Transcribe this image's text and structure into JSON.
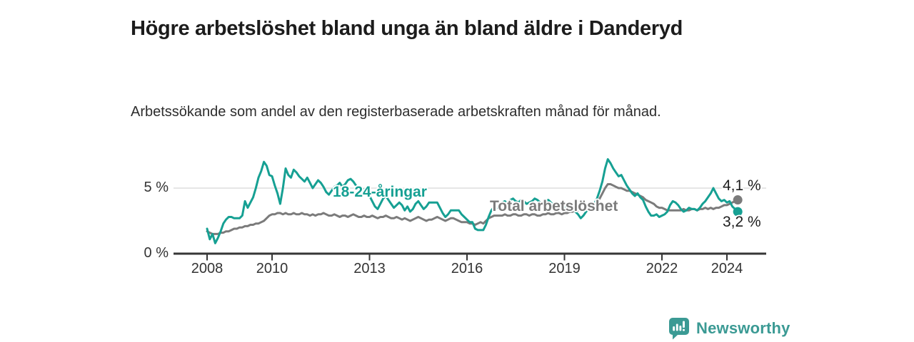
{
  "chart_data": {
    "type": "line",
    "title": "Högre arbetslöshet bland unga än bland äldre i Danderyd",
    "subtitle": "Arbetssökande som andel av den registerbaserade arbetskraften månad för månad.",
    "x_start_year": 2008,
    "points_per_year": 12,
    "x_ticks": [
      2008,
      2010,
      2013,
      2016,
      2019,
      2022,
      2024
    ],
    "y_ticks": [
      {
        "value": 5,
        "label": "5 %"
      },
      {
        "value": 0,
        "label": "0 %"
      }
    ],
    "ylim": [
      0,
      7.5
    ],
    "grid": true,
    "grid_color": "#d8d8d8",
    "axis_color": "#363636",
    "legend_position": "inline-labels",
    "series": [
      {
        "id": "total",
        "name": "Total arbetslöshet",
        "color": "#7b7b7b",
        "end_label": "4,1 %",
        "end_value": 4.1,
        "values": [
          1.7,
          1.6,
          1.5,
          1.5,
          1.5,
          1.6,
          1.6,
          1.7,
          1.7,
          1.8,
          1.9,
          1.9,
          2.0,
          2.0,
          2.1,
          2.1,
          2.2,
          2.2,
          2.3,
          2.3,
          2.4,
          2.5,
          2.7,
          2.9,
          3.0,
          3.0,
          3.1,
          3.1,
          3.0,
          3.1,
          3.0,
          3.0,
          3.1,
          3.0,
          3.0,
          3.1,
          3.0,
          3.0,
          2.9,
          3.0,
          2.9,
          3.0,
          3.0,
          3.1,
          3.0,
          2.9,
          2.9,
          3.0,
          2.9,
          2.8,
          2.9,
          2.9,
          2.8,
          2.9,
          3.0,
          2.9,
          2.8,
          2.8,
          2.9,
          2.8,
          2.8,
          2.9,
          2.8,
          2.7,
          2.8,
          2.8,
          2.9,
          2.8,
          2.7,
          2.7,
          2.8,
          2.7,
          2.6,
          2.7,
          2.6,
          2.5,
          2.6,
          2.7,
          2.8,
          2.7,
          2.6,
          2.5,
          2.6,
          2.6,
          2.7,
          2.8,
          2.7,
          2.6,
          2.5,
          2.6,
          2.7,
          2.7,
          2.6,
          2.5,
          2.4,
          2.4,
          2.4,
          2.3,
          2.3,
          2.2,
          2.3,
          2.4,
          2.3,
          2.5,
          2.7,
          2.8,
          2.9,
          2.9,
          2.9,
          2.9,
          3.0,
          2.9,
          2.9,
          3.0,
          3.0,
          2.9,
          2.9,
          3.0,
          3.0,
          2.9,
          3.0,
          3.0,
          2.9,
          2.9,
          3.0,
          3.0,
          3.1,
          3.0,
          3.0,
          3.1,
          3.1,
          3.0,
          3.1,
          3.1,
          3.2,
          3.2,
          3.3,
          3.3,
          3.4,
          3.4,
          3.5,
          3.5,
          3.6,
          3.7,
          3.9,
          4.2,
          4.6,
          5.0,
          5.3,
          5.3,
          5.2,
          5.1,
          5.0,
          5.0,
          4.9,
          4.8,
          4.8,
          4.7,
          4.6,
          4.5,
          4.4,
          4.3,
          4.1,
          4.0,
          3.9,
          3.8,
          3.6,
          3.5,
          3.5,
          3.4,
          3.3,
          3.3,
          3.3,
          3.3,
          3.3,
          3.3,
          3.4,
          3.3,
          3.3,
          3.4,
          3.4,
          3.3,
          3.4,
          3.4,
          3.5,
          3.4,
          3.5,
          3.4,
          3.5,
          3.5,
          3.6,
          3.7,
          3.7,
          3.8,
          3.9,
          4.0,
          4.1
        ]
      },
      {
        "id": "youth",
        "name": "18-24-åringar",
        "color": "#16a093",
        "end_label": "3,2 %",
        "end_value": 3.2,
        "values": [
          1.9,
          1.1,
          1.5,
          0.8,
          1.2,
          1.7,
          2.3,
          2.6,
          2.8,
          2.8,
          2.7,
          2.7,
          2.7,
          2.9,
          4.0,
          3.5,
          3.9,
          4.3,
          5.0,
          5.8,
          6.3,
          7.0,
          6.7,
          6.0,
          5.9,
          5.2,
          4.6,
          3.8,
          5.0,
          6.5,
          6.0,
          5.8,
          6.4,
          6.2,
          5.9,
          5.7,
          5.5,
          5.8,
          5.4,
          5.0,
          5.3,
          5.6,
          5.4,
          5.1,
          4.7,
          4.5,
          4.8,
          5.1,
          5.2,
          5.4,
          5.1,
          5.3,
          5.6,
          5.7,
          5.5,
          5.2,
          4.9,
          4.7,
          4.9,
          4.6,
          4.4,
          4.0,
          3.6,
          3.4,
          3.8,
          4.2,
          4.4,
          4.1,
          3.8,
          3.5,
          3.7,
          3.9,
          3.7,
          3.3,
          3.6,
          3.2,
          3.4,
          3.8,
          4.0,
          3.7,
          3.4,
          3.6,
          3.9,
          3.9,
          3.9,
          3.9,
          3.5,
          3.1,
          2.8,
          3.0,
          3.3,
          3.3,
          3.3,
          3.3,
          3.0,
          2.8,
          2.6,
          2.4,
          2.4,
          1.9,
          1.8,
          1.8,
          1.8,
          2.2,
          2.8,
          3.3,
          3.6,
          3.5,
          3.7,
          3.9,
          4.0,
          3.8,
          4.1,
          4.2,
          4.0,
          3.9,
          4.1,
          4.0,
          3.8,
          3.9,
          4.0,
          4.2,
          4.1,
          3.9,
          3.8,
          4.0,
          4.1,
          3.9,
          3.7,
          3.6,
          3.8,
          3.7,
          3.6,
          3.4,
          3.3,
          3.5,
          3.2,
          3.0,
          2.7,
          2.9,
          3.2,
          3.4,
          3.6,
          3.8,
          4.2,
          4.8,
          5.5,
          6.5,
          7.2,
          6.9,
          6.5,
          6.2,
          5.9,
          6.0,
          5.6,
          5.2,
          4.9,
          4.6,
          4.4,
          4.6,
          4.3,
          4.1,
          3.6,
          3.2,
          2.9,
          2.9,
          3.0,
          2.8,
          2.9,
          3.0,
          3.2,
          3.7,
          4.0,
          3.9,
          3.7,
          3.4,
          3.2,
          3.3,
          3.5,
          3.4,
          3.4,
          3.3,
          3.5,
          3.8,
          4.0,
          4.3,
          4.6,
          5.0,
          4.6,
          4.2,
          4.0,
          4.1,
          3.9,
          4.0,
          3.6,
          3.4,
          3.2
        ]
      }
    ]
  },
  "footer": {
    "brand": "Newsworthy"
  }
}
